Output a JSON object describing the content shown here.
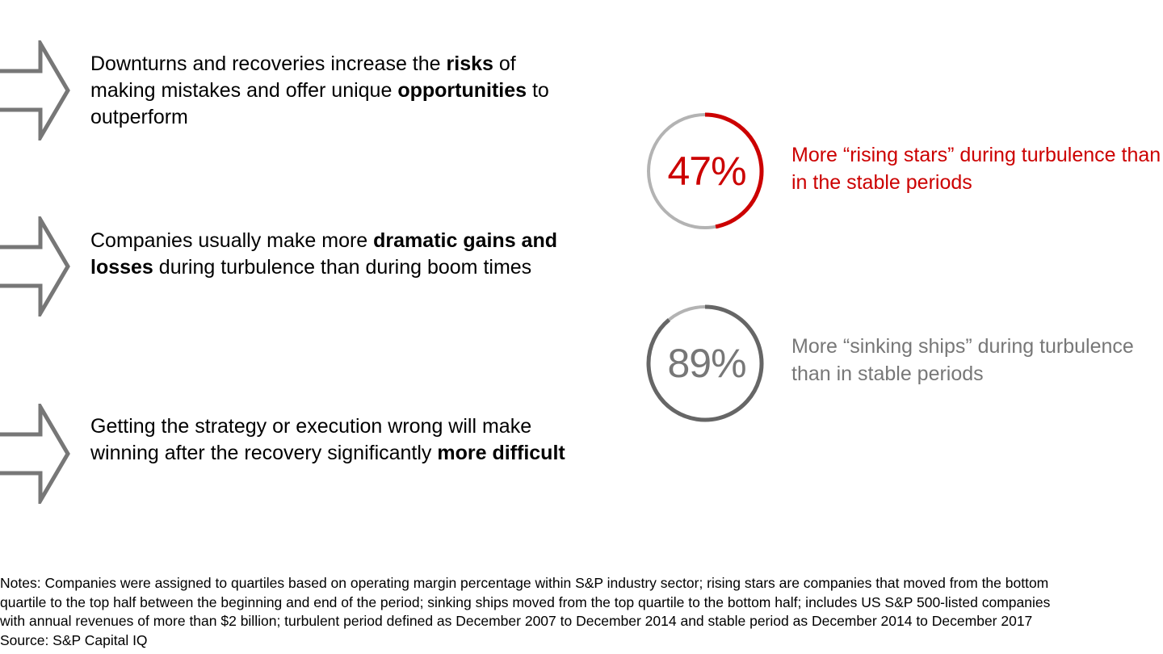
{
  "colors": {
    "accent_red": "#cc0000",
    "arrow_gray": "#777777",
    "ring_light": "#b3b3b3",
    "ring_dark": "#666666",
    "gray_text": "#777777"
  },
  "points": [
    {
      "icon": "right-arrow-icon",
      "parts": [
        {
          "text": "Downturns and recoveries increase the ",
          "bold": false
        },
        {
          "text": "risks",
          "bold": true
        },
        {
          "text": " of making mistakes and offer unique ",
          "bold": false
        },
        {
          "text": "opportunities",
          "bold": true
        },
        {
          "text": " to outperform",
          "bold": false
        }
      ]
    },
    {
      "icon": "right-arrow-icon",
      "parts": [
        {
          "text": "Companies usually make more ",
          "bold": false
        },
        {
          "text": "dramatic gains and losses",
          "bold": true
        },
        {
          "text": " during turbulence than during boom times",
          "bold": false
        }
      ]
    },
    {
      "icon": "right-arrow-icon",
      "parts": [
        {
          "text": "Getting the strategy or execution wrong will make winning after the recovery significantly ",
          "bold": false
        },
        {
          "text": "more difficult",
          "bold": true
        }
      ]
    }
  ],
  "stats": [
    {
      "value": "47%",
      "fraction": 0.47,
      "caption": "More “rising stars” during turbulence than in the stable periods",
      "value_color": "#cc0000",
      "caption_color": "#cc0000",
      "arc_color": "#cc0000",
      "track_color": "#b3b3b3"
    },
    {
      "value": "89%",
      "fraction": 0.89,
      "caption": "More “sinking ships” during turbulence than in stable periods",
      "value_color": "#777777",
      "caption_color": "#777777",
      "arc_color": "#666666",
      "track_color": "#b3b3b3"
    }
  ],
  "notes": {
    "line1": "Notes: Companies were assigned to quartiles based on operating margin percentage within S&P industry sector; rising stars are companies that moved from the bottom",
    "line2": "quartile to the top half between the beginning and end of the period; sinking ships moved from the top quartile to the bottom half; includes US S&P 500-listed companies",
    "line3": "with annual revenues of more than $2 billion; turbulent period defined as December 2007 to December 2014 and stable period as December 2014 to December 2017",
    "source": "Source: S&P Capital IQ"
  }
}
